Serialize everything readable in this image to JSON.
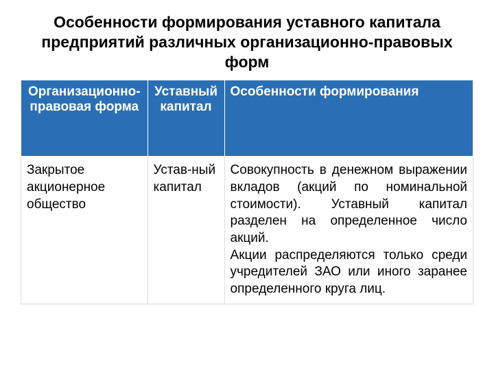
{
  "title": "Особенности формирования уставного капитала предприятий различных организационно-правовых форм",
  "table": {
    "headers": {
      "col1": "Организационно-правовая форма",
      "col2": "Уставный капитал",
      "col3": "Особенности формирования"
    },
    "row": {
      "col1": "Закрытое акционерное общество",
      "col2": "Устав-ный капитал",
      "col3_p1": "Совокупность в денежном выражении вкладов (акций по номинальной стоимости). Уставный капитал разделен на определенное число акций.",
      "col3_p2": "Акции распределяются только среди учредителей ЗАО или иного заранее определенного круга лиц."
    }
  },
  "colors": {
    "header_bg": "#2a6fb5",
    "header_text": "#ffffff",
    "body_text": "#000000",
    "background": "#ffffff"
  },
  "typography": {
    "title_fontsize": 23,
    "header_fontsize": 19,
    "cell_fontsize": 19
  }
}
